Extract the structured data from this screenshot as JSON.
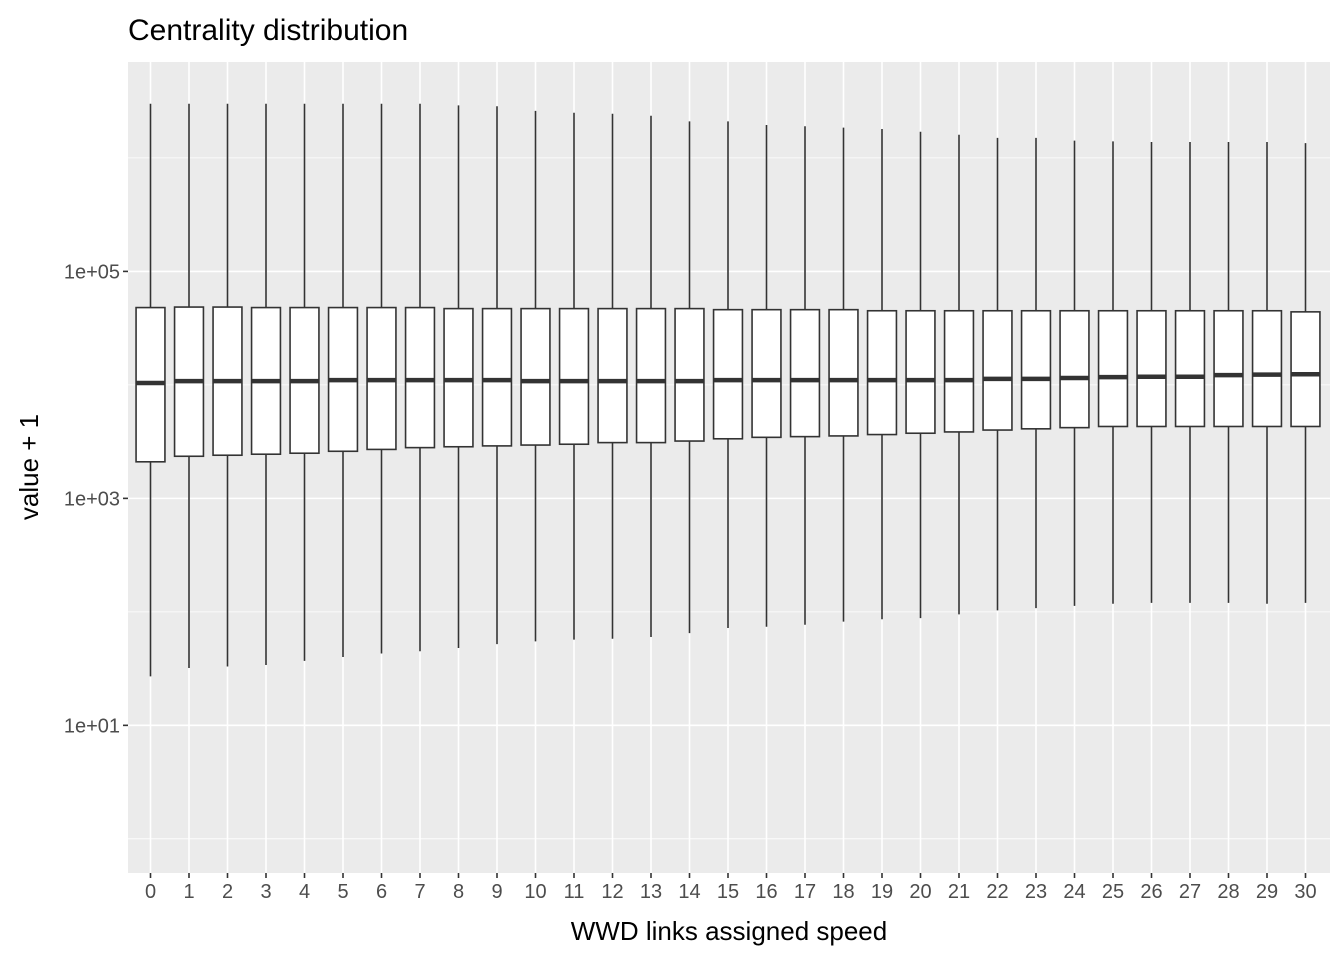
{
  "chart_data": {
    "type": "boxplot",
    "title": "Centrality distribution",
    "xlabel": "WWD links assigned speed",
    "ylabel": "value + 1",
    "y_scale": "log10",
    "ylim": [
      0.5,
      7000000
    ],
    "y_ticks": [
      {
        "value": 10,
        "label": "1e+01"
      },
      {
        "value": 1000,
        "label": "1e+03"
      },
      {
        "value": 100000,
        "label": "1e+05"
      }
    ],
    "y_minor_ticks": [
      1,
      100,
      10000,
      1000000
    ],
    "grid": true,
    "categories": [
      "0",
      "1",
      "2",
      "3",
      "4",
      "5",
      "6",
      "7",
      "8",
      "9",
      "10",
      "11",
      "12",
      "13",
      "14",
      "15",
      "16",
      "17",
      "18",
      "19",
      "20",
      "21",
      "22",
      "23",
      "24",
      "25",
      "26",
      "27",
      "28",
      "29",
      "30"
    ],
    "boxes": [
      {
        "min": 27,
        "q1": 2100,
        "median": 10400,
        "q3": 48000,
        "max": 3000000
      },
      {
        "min": 32,
        "q1": 2350,
        "median": 10800,
        "q3": 48500,
        "max": 3000000
      },
      {
        "min": 33,
        "q1": 2400,
        "median": 10800,
        "q3": 48500,
        "max": 3000000
      },
      {
        "min": 34,
        "q1": 2450,
        "median": 10800,
        "q3": 48000,
        "max": 3000000
      },
      {
        "min": 37,
        "q1": 2500,
        "median": 10800,
        "q3": 48000,
        "max": 3000000
      },
      {
        "min": 40,
        "q1": 2600,
        "median": 11000,
        "q3": 48000,
        "max": 3000000
      },
      {
        "min": 43,
        "q1": 2700,
        "median": 11000,
        "q3": 48000,
        "max": 3000000
      },
      {
        "min": 45,
        "q1": 2800,
        "median": 11000,
        "q3": 48000,
        "max": 3000000
      },
      {
        "min": 48,
        "q1": 2850,
        "median": 11000,
        "q3": 47000,
        "max": 2900000
      },
      {
        "min": 52,
        "q1": 2900,
        "median": 11000,
        "q3": 47000,
        "max": 2850000
      },
      {
        "min": 55,
        "q1": 2950,
        "median": 10800,
        "q3": 47000,
        "max": 2600000
      },
      {
        "min": 57,
        "q1": 3000,
        "median": 10800,
        "q3": 47000,
        "max": 2500000
      },
      {
        "min": 58,
        "q1": 3100,
        "median": 10800,
        "q3": 47000,
        "max": 2450000
      },
      {
        "min": 60,
        "q1": 3100,
        "median": 10800,
        "q3": 47000,
        "max": 2350000
      },
      {
        "min": 65,
        "q1": 3200,
        "median": 10800,
        "q3": 47000,
        "max": 2100000
      },
      {
        "min": 72,
        "q1": 3350,
        "median": 11000,
        "q3": 46000,
        "max": 2100000
      },
      {
        "min": 74,
        "q1": 3450,
        "median": 11000,
        "q3": 46000,
        "max": 1950000
      },
      {
        "min": 77,
        "q1": 3500,
        "median": 11000,
        "q3": 46000,
        "max": 1900000
      },
      {
        "min": 82,
        "q1": 3550,
        "median": 11000,
        "q3": 46000,
        "max": 1850000
      },
      {
        "min": 86,
        "q1": 3650,
        "median": 11000,
        "q3": 45000,
        "max": 1800000
      },
      {
        "min": 88,
        "q1": 3750,
        "median": 11000,
        "q3": 45000,
        "max": 1700000
      },
      {
        "min": 95,
        "q1": 3850,
        "median": 11000,
        "q3": 45000,
        "max": 1600000
      },
      {
        "min": 103,
        "q1": 4000,
        "median": 11300,
        "q3": 45000,
        "max": 1500000
      },
      {
        "min": 108,
        "q1": 4100,
        "median": 11300,
        "q3": 45000,
        "max": 1500000
      },
      {
        "min": 113,
        "q1": 4200,
        "median": 11500,
        "q3": 45000,
        "max": 1420000
      },
      {
        "min": 118,
        "q1": 4300,
        "median": 11700,
        "q3": 45000,
        "max": 1400000
      },
      {
        "min": 120,
        "q1": 4300,
        "median": 11800,
        "q3": 45000,
        "max": 1380000
      },
      {
        "min": 120,
        "q1": 4300,
        "median": 11800,
        "q3": 45000,
        "max": 1380000
      },
      {
        "min": 120,
        "q1": 4300,
        "median": 12200,
        "q3": 45000,
        "max": 1380000
      },
      {
        "min": 118,
        "q1": 4300,
        "median": 12300,
        "q3": 45000,
        "max": 1380000
      },
      {
        "min": 120,
        "q1": 4300,
        "median": 12400,
        "q3": 44000,
        "max": 1350000
      }
    ]
  },
  "colors": {
    "panel": "#ebebeb",
    "grid": "#ffffff",
    "box_fill": "#ffffff",
    "box_line": "#333333",
    "tick_text": "#4d4d4d"
  }
}
